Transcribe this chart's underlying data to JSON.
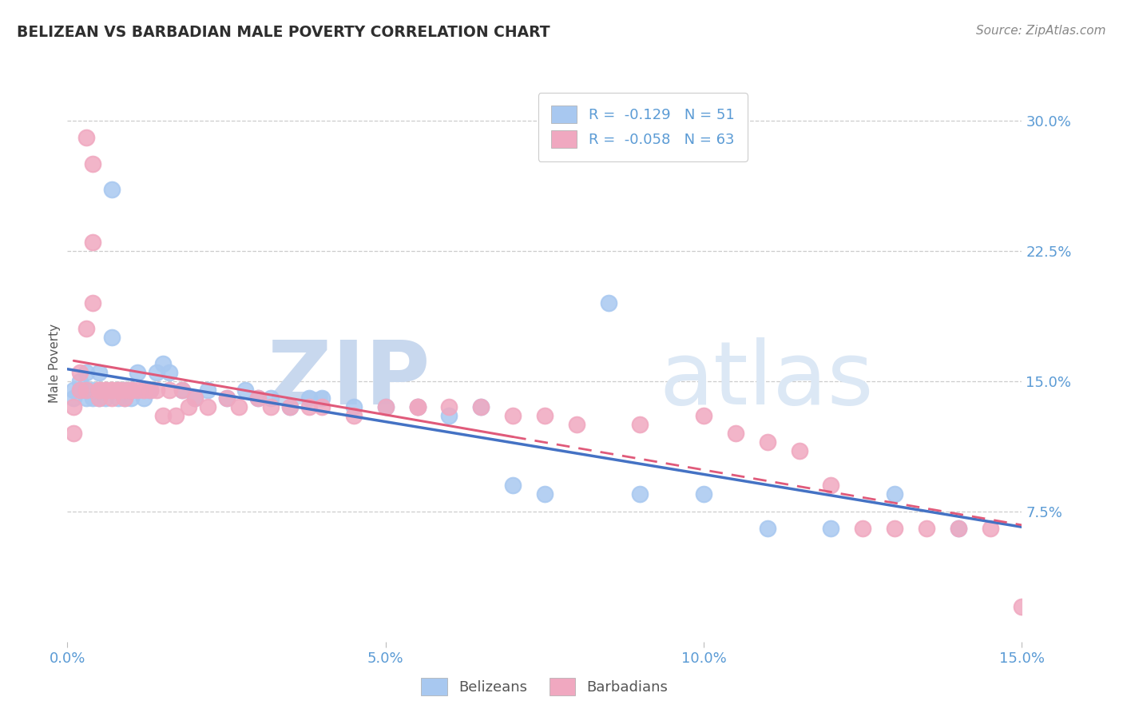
{
  "title": "BELIZEAN VS BARBADIAN MALE POVERTY CORRELATION CHART",
  "source_text": "Source: ZipAtlas.com",
  "ylabel": "Male Poverty",
  "xlim": [
    0.0,
    0.15
  ],
  "ylim": [
    0.0,
    0.32
  ],
  "ytick_vals": [
    0.075,
    0.15,
    0.225,
    0.3
  ],
  "ytick_labels": [
    "7.5%",
    "15.0%",
    "22.5%",
    "30.0%"
  ],
  "xtick_vals": [
    0.0,
    0.05,
    0.1,
    0.15
  ],
  "xtick_labels": [
    "0.0%",
    "5.0%",
    "10.0%",
    "15.0%"
  ],
  "title_color": "#2e2e2e",
  "axis_tick_color": "#5b9bd5",
  "grid_color": "#cccccc",
  "belizean_color": "#a8c8f0",
  "barbadian_color": "#f0a8c0",
  "belizean_line_color": "#4472c4",
  "barbadian_line_color": "#e05a7a",
  "R_belizean": -0.129,
  "N_belizean": 51,
  "R_barbadian": -0.058,
  "N_barbadian": 63,
  "watermark_zip": "ZIP",
  "watermark_atlas": "atlas",
  "watermark_color": "#dce8f5",
  "belizean_x": [
    0.001,
    0.001,
    0.002,
    0.002,
    0.003,
    0.003,
    0.003,
    0.004,
    0.004,
    0.005,
    0.005,
    0.005,
    0.006,
    0.007,
    0.007,
    0.008,
    0.008,
    0.009,
    0.009,
    0.01,
    0.01,
    0.011,
    0.012,
    0.013,
    0.014,
    0.015,
    0.016,
    0.018,
    0.02,
    0.022,
    0.025,
    0.028,
    0.03,
    0.032,
    0.035,
    0.038,
    0.04,
    0.045,
    0.05,
    0.055,
    0.06,
    0.065,
    0.07,
    0.075,
    0.085,
    0.09,
    0.1,
    0.11,
    0.12,
    0.13,
    0.14
  ],
  "belizean_y": [
    0.14,
    0.145,
    0.145,
    0.15,
    0.14,
    0.145,
    0.155,
    0.14,
    0.145,
    0.14,
    0.145,
    0.155,
    0.14,
    0.175,
    0.26,
    0.14,
    0.145,
    0.14,
    0.145,
    0.14,
    0.145,
    0.155,
    0.14,
    0.145,
    0.155,
    0.16,
    0.155,
    0.145,
    0.14,
    0.145,
    0.14,
    0.145,
    0.14,
    0.14,
    0.135,
    0.14,
    0.14,
    0.135,
    0.135,
    0.135,
    0.13,
    0.135,
    0.09,
    0.085,
    0.195,
    0.085,
    0.085,
    0.065,
    0.065,
    0.085,
    0.065
  ],
  "barbadian_x": [
    0.001,
    0.001,
    0.002,
    0.002,
    0.003,
    0.003,
    0.003,
    0.004,
    0.004,
    0.004,
    0.005,
    0.005,
    0.005,
    0.006,
    0.006,
    0.007,
    0.007,
    0.007,
    0.008,
    0.008,
    0.009,
    0.009,
    0.01,
    0.01,
    0.011,
    0.012,
    0.013,
    0.014,
    0.015,
    0.016,
    0.017,
    0.018,
    0.019,
    0.02,
    0.022,
    0.025,
    0.027,
    0.03,
    0.032,
    0.035,
    0.038,
    0.04,
    0.045,
    0.05,
    0.055,
    0.06,
    0.065,
    0.07,
    0.075,
    0.08,
    0.09,
    0.1,
    0.105,
    0.11,
    0.115,
    0.12,
    0.125,
    0.13,
    0.135,
    0.14,
    0.145,
    0.15,
    0.055
  ],
  "barbadian_y": [
    0.12,
    0.135,
    0.145,
    0.155,
    0.29,
    0.18,
    0.145,
    0.275,
    0.23,
    0.195,
    0.145,
    0.145,
    0.14,
    0.145,
    0.145,
    0.145,
    0.145,
    0.14,
    0.145,
    0.145,
    0.145,
    0.14,
    0.145,
    0.145,
    0.145,
    0.145,
    0.145,
    0.145,
    0.13,
    0.145,
    0.13,
    0.145,
    0.135,
    0.14,
    0.135,
    0.14,
    0.135,
    0.14,
    0.135,
    0.135,
    0.135,
    0.135,
    0.13,
    0.135,
    0.135,
    0.135,
    0.135,
    0.13,
    0.13,
    0.125,
    0.125,
    0.13,
    0.12,
    0.115,
    0.11,
    0.09,
    0.065,
    0.065,
    0.065,
    0.065,
    0.065,
    0.02,
    0.135
  ]
}
